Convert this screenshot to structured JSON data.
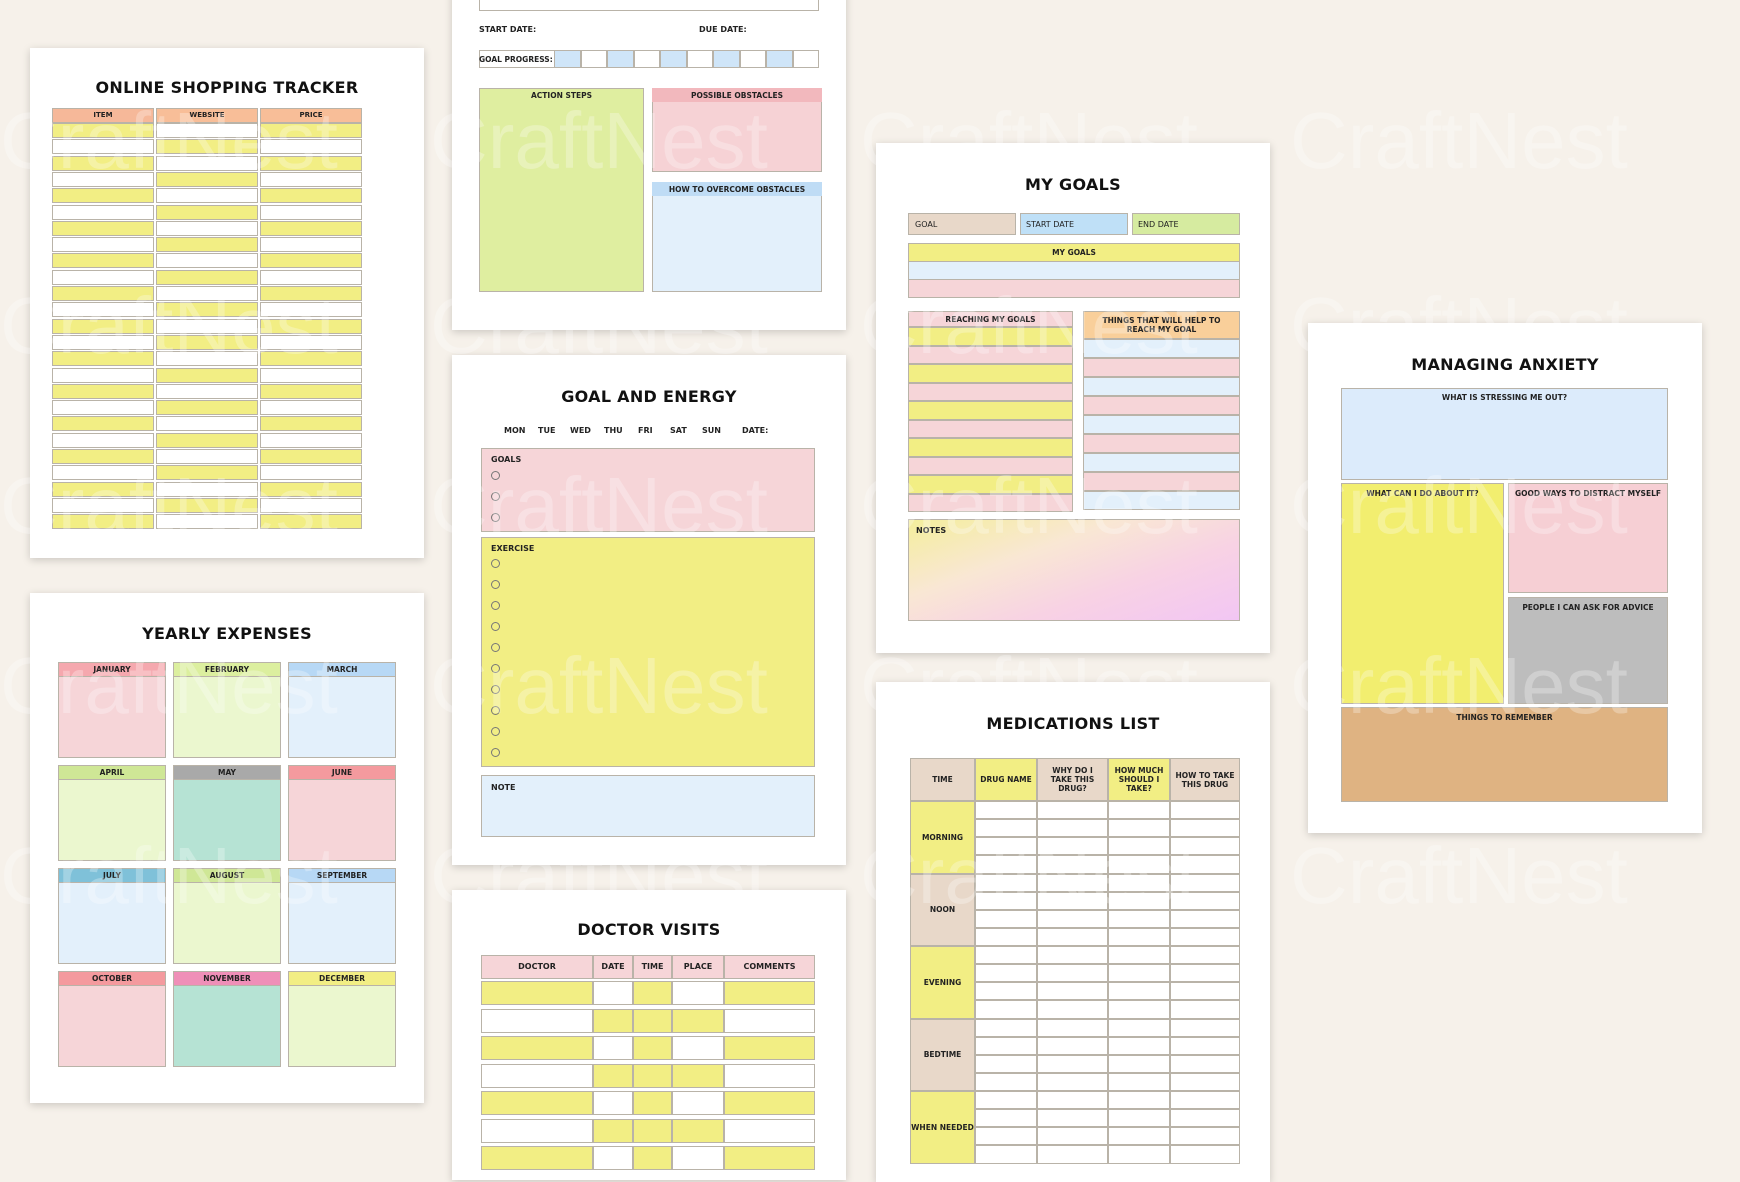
{
  "shopping": {
    "title": "ONLINE SHOPPING TRACKER",
    "cols": [
      "ITEM",
      "WEBSITE",
      "PRICE"
    ]
  },
  "action": {
    "start_label": "START DATE:",
    "due_label": "DUE DATE:",
    "progress_label": "GOAL PROGRESS:",
    "action_steps": "ACTION STEPS",
    "obstacles": "POSSIBLE OBSTACLES",
    "overcome": "HOW TO OVERCOME OBSTACLES"
  },
  "goal_energy": {
    "title": "GOAL AND ENERGY",
    "days": [
      "MON",
      "TUE",
      "WED",
      "THU",
      "FRI",
      "SAT",
      "SUN",
      "DATE:"
    ],
    "goals": "GOALS",
    "exercise": "EXERCISE",
    "note": "NOTE"
  },
  "my_goals": {
    "title": "MY GOALS",
    "goal": "GOAL",
    "start": "START DATE",
    "end": "END DATE",
    "band": "MY GOALS",
    "reaching": "REACHING MY GOALS",
    "things": "THINGS THAT WILL HELP TO REACH MY GOAL",
    "notes": "NOTES"
  },
  "anxiety": {
    "title": "MANAGING ANXIETY",
    "stress": "WHAT IS STRESSING ME OUT?",
    "do": "WHAT CAN I DO ABOUT IT?",
    "distract": "GOOD WAYS TO DISTRACT MYSELF",
    "advice": "PEOPLE I CAN ASK FOR ADVICE",
    "remember": "THINGS TO REMEMBER"
  },
  "yearly": {
    "title": "YEARLY EXPENSES",
    "months": [
      "JANUARY",
      "FEBRUARY",
      "MARCH",
      "APRIL",
      "MAY",
      "JUNE",
      "JULY",
      "AUGUST",
      "SEPTEMBER",
      "OCTOBER",
      "NOVEMBER",
      "DECEMBER"
    ]
  },
  "meds": {
    "title": "MEDICATIONS LIST",
    "cols": [
      "TIME",
      "DRUG NAME",
      "WHY DO I TAKE THIS DRUG?",
      "HOW MUCH SHOULD I TAKE?",
      "HOW TO TAKE THIS DRUG"
    ],
    "times": [
      "MORNING",
      "NOON",
      "EVENING",
      "BEDTIME",
      "WHEN NEEDED"
    ]
  },
  "doctor": {
    "title": "DOCTOR VISITS",
    "cols": [
      "DOCTOR",
      "DATE",
      "TIME",
      "PLACE",
      "COMMENTS"
    ]
  },
  "watermark": "CraftNest",
  "colors": {
    "yellow": "#f2ee84",
    "pink": "#f6d5d8",
    "blue": "#e3f0fb",
    "green": "#ebf7cf",
    "orange": "#f8be98",
    "tan": "#e8d8c9",
    "gray": "#bdbdbd",
    "mint": "#b6e3d4",
    "brown": "#dfb382"
  }
}
